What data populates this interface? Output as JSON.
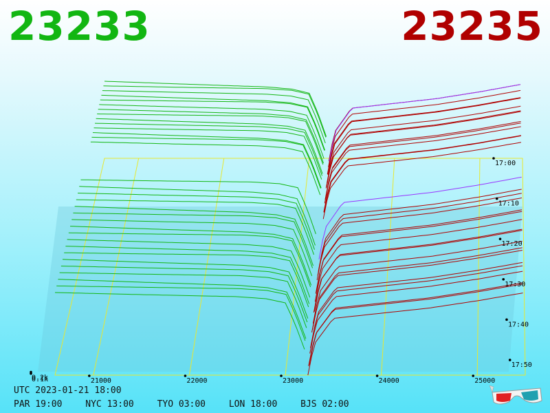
{
  "header": {
    "bid": "23233",
    "ask": "23235"
  },
  "footer": {
    "utc": "UTC 2023-01-21 18:00",
    "clocks": [
      "PAR 19:00",
      "NYC 13:00",
      "TYO 03:00",
      "LON 18:00",
      "BJS 02:00"
    ]
  },
  "colors": {
    "bid": "#12b612",
    "ask": "#b00000",
    "grid": "#e8e830",
    "latest": "#9933ff"
  },
  "icons": [
    "3d-glasses-icon"
  ],
  "chart_data": {
    "type": "area",
    "subtype": "3d-order-book-depth-waterfall",
    "title": "",
    "xlabel": "",
    "ylabel": "",
    "x_ticks": [
      21000,
      22000,
      23000,
      24000,
      25000
    ],
    "x_tick_labels": [
      "21000",
      "22000",
      "23000",
      "24000",
      "25000"
    ],
    "volume_ticks": [
      0.1,
      0.2
    ],
    "volume_tick_labels": [
      "0.1k",
      "0.2k"
    ],
    "time_ticks": [
      "17:00",
      "17:10",
      "17:20",
      "17:30",
      "17:40",
      "17:50"
    ],
    "mid_price": 23234,
    "xlim": [
      20600,
      25500
    ],
    "grid": true,
    "series": [
      {
        "side": "bid",
        "x": [
          20600,
          21500,
          22500,
          22800,
          23000,
          23100,
          23200,
          23233
        ],
        "cumulative_volume": [
          0.8,
          0.78,
          0.76,
          0.74,
          0.7,
          0.5,
          0.25,
          0.0
        ]
      },
      {
        "side": "ask",
        "x": [
          23235,
          23300,
          23500,
          24000,
          24500,
          25000,
          25500
        ],
        "cumulative_volume": [
          0.0,
          0.3,
          0.55,
          0.6,
          0.65,
          0.72,
          0.8
        ]
      }
    ]
  }
}
